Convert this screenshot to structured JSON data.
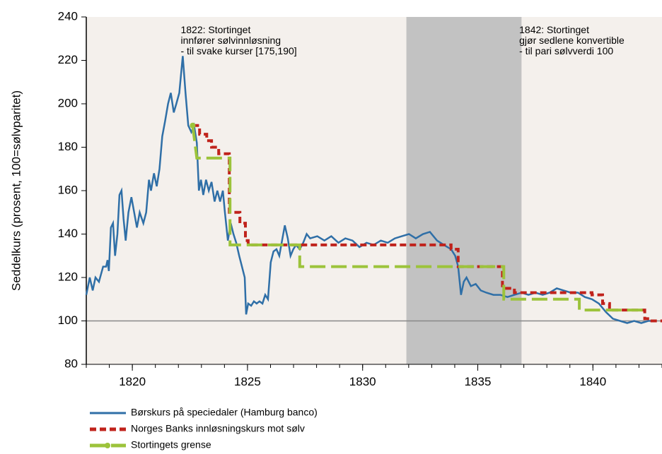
{
  "chart_data": {
    "type": "line",
    "ylabel": "Seddelkurs (prosent, 100=sølvparitet)",
    "xlim": [
      1818,
      1843
    ],
    "ylim": [
      80,
      240
    ],
    "xticks": [
      1820,
      1825,
      1830,
      1835,
      1840
    ],
    "yticks": [
      80,
      100,
      120,
      140,
      160,
      180,
      200,
      220,
      240
    ],
    "highlight": [
      1831.9,
      1836.9
    ],
    "highlight_color": "#c2c2c2",
    "background": "#f4f0ec",
    "reference_line": 100,
    "annotations": [
      {
        "x": 1822.1,
        "lines": [
          "1822: Stortinget",
          "innfører sølvinnløsning",
          "- til svake kurser [175,190]"
        ]
      },
      {
        "x": 1836.8,
        "lines": [
          "1842: Stortinget",
          "gjør sedlene konvertible",
          "- til pari sølvverdi 100"
        ]
      }
    ],
    "series": [
      {
        "name": "Børskurs på speciedaler (Hamburg banco)",
        "color": "#2f6fa7",
        "dash": "solid",
        "x": [
          1818.0,
          1818.15,
          1818.28,
          1818.4,
          1818.55,
          1818.73,
          1818.86,
          1818.92,
          1818.98,
          1819.07,
          1819.16,
          1819.25,
          1819.35,
          1819.44,
          1819.53,
          1819.62,
          1819.71,
          1819.83,
          1819.96,
          1820.08,
          1820.2,
          1820.32,
          1820.48,
          1820.6,
          1820.72,
          1820.81,
          1820.94,
          1821.06,
          1821.18,
          1821.3,
          1821.42,
          1821.55,
          1821.67,
          1821.8,
          1821.91,
          1822.04,
          1822.19,
          1822.31,
          1822.43,
          1822.56,
          1822.68,
          1822.8,
          1822.89,
          1822.98,
          1823.08,
          1823.2,
          1823.32,
          1823.44,
          1823.57,
          1823.69,
          1823.81,
          1823.93,
          1824.02,
          1824.15,
          1824.27,
          1824.39,
          1824.51,
          1824.64,
          1824.76,
          1824.88,
          1824.94,
          1825.03,
          1825.16,
          1825.28,
          1825.4,
          1825.52,
          1825.65,
          1825.77,
          1825.89,
          1826.01,
          1826.13,
          1826.26,
          1826.38,
          1826.5,
          1826.62,
          1826.75,
          1826.87,
          1826.99,
          1827.11,
          1827.27,
          1827.42,
          1827.57,
          1827.72,
          1828.03,
          1828.34,
          1828.64,
          1828.95,
          1829.25,
          1829.56,
          1829.86,
          1830.17,
          1830.48,
          1830.79,
          1831.09,
          1831.4,
          1831.7,
          1832.01,
          1832.31,
          1832.62,
          1832.92,
          1833.23,
          1833.53,
          1833.84,
          1834.02,
          1834.15,
          1834.27,
          1834.39,
          1834.51,
          1834.7,
          1834.91,
          1835.13,
          1835.37,
          1835.68,
          1835.98,
          1836.29,
          1836.59,
          1836.9,
          1837.2,
          1837.51,
          1837.82,
          1838.12,
          1838.43,
          1838.73,
          1839.04,
          1839.35,
          1839.65,
          1839.96,
          1840.26,
          1840.57,
          1840.87,
          1841.18,
          1841.49,
          1841.79,
          1842.1,
          1842.4,
          1842.71
        ],
        "values": [
          112,
          120,
          114,
          120,
          118,
          125,
          125,
          128,
          123,
          143,
          145,
          130,
          140,
          158,
          160,
          147,
          137,
          150,
          157,
          150,
          143,
          150,
          145,
          150,
          165,
          160,
          168,
          162,
          170,
          185,
          192,
          200,
          205,
          196,
          200,
          205,
          222,
          205,
          190,
          187,
          190,
          182,
          160,
          165,
          158,
          165,
          160,
          164,
          155,
          160,
          155,
          160,
          150,
          137,
          145,
          140,
          136,
          130,
          125,
          120,
          103,
          108,
          107,
          109,
          108,
          109,
          108,
          112,
          110,
          127,
          132,
          133,
          130,
          137,
          144,
          138,
          130,
          133,
          135,
          133,
          136,
          140,
          138,
          139,
          137,
          139,
          136,
          138,
          137,
          134,
          136,
          135,
          137,
          136,
          138,
          139,
          140,
          138,
          140,
          141,
          137,
          135,
          133,
          130,
          125,
          112,
          118,
          120,
          116,
          117,
          114,
          113,
          112,
          112,
          111,
          112,
          113,
          112,
          113,
          112,
          113,
          115,
          114,
          113,
          113,
          111,
          110,
          108,
          104,
          101,
          100,
          99,
          100,
          99,
          100,
          100
        ]
      },
      {
        "name": "Norges Banks innløsningskurs mot sølv",
        "color": "#c0231c",
        "dash": "dashed",
        "x": [
          1822.62,
          1822.92,
          1822.92,
          1823.23,
          1823.23,
          1823.44,
          1823.44,
          1823.75,
          1823.75,
          1824.21,
          1824.21,
          1824.67,
          1824.67,
          1824.91,
          1824.91,
          1825.03,
          1825.03,
          1833.84,
          1833.84,
          1834.15,
          1834.15,
          1836.07,
          1836.07,
          1836.59,
          1836.59,
          1839.96,
          1839.96,
          1840.42,
          1840.42,
          1840.72,
          1840.72,
          1842.25,
          1842.25,
          1842.56,
          1842.56,
          1843
        ],
        "values": [
          190,
          190,
          186,
          186,
          183,
          183,
          180,
          180,
          177,
          177,
          150,
          150,
          145,
          145,
          137,
          137,
          135,
          135,
          133,
          133,
          125,
          125,
          115,
          115,
          113,
          113,
          112,
          112,
          108,
          108,
          105,
          105,
          101,
          101,
          100,
          100
        ]
      },
      {
        "name": "Stortingets grense",
        "color": "#9cc33b",
        "dash": "longdash",
        "x": [
          1822.62,
          1822.8,
          1824.24,
          1824.24,
          1827.27,
          1827.27,
          1836.13,
          1836.13,
          1839.41,
          1839.41,
          1842.25
        ],
        "values": [
          190,
          175,
          175,
          135,
          135,
          125,
          125,
          110,
          110,
          105,
          105
        ]
      }
    ]
  }
}
